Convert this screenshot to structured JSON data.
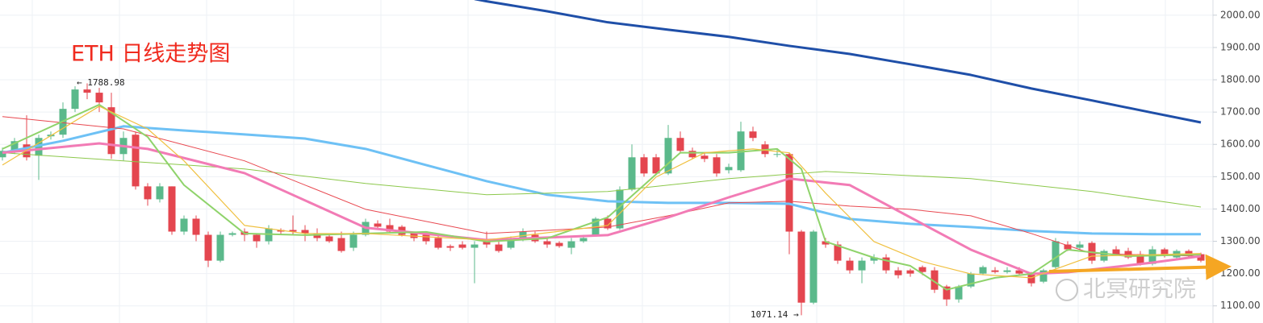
{
  "chart_data": {
    "type": "candlestick",
    "title": "ETH 日线走势图",
    "annotations": [
      "← 1788.98",
      "1071.14 →"
    ],
    "watermark": "北冥研究院",
    "ylim": [
      1047,
      2047
    ],
    "yticks": [
      {
        "value": 1100,
        "label": "1100.00"
      },
      {
        "value": 1200,
        "label": "1200.00"
      },
      {
        "value": 1300,
        "label": "1300.00"
      },
      {
        "value": 1400,
        "label": "1400.00"
      },
      {
        "value": 1500,
        "label": "1500.00"
      },
      {
        "value": 1600,
        "label": "1600.00"
      },
      {
        "value": 1700,
        "label": "1700.00"
      },
      {
        "value": 1800,
        "label": "1800.00"
      },
      {
        "value": 1900,
        "label": "1900.00"
      },
      {
        "value": 2000,
        "label": "2000.00"
      }
    ],
    "grid": true,
    "up_color": "#5bb98b",
    "down_color": "#e4464f",
    "open": [
      1560,
      1580,
      1600,
      1565,
      1625,
      1630,
      1710,
      1770,
      1760,
      1715,
      1570,
      1630,
      1470,
      1430,
      1470,
      1330,
      1370,
      1320,
      1240,
      1320,
      1330,
      1320,
      1300,
      1335,
      1335,
      1335,
      1325,
      1315,
      1310,
      1280,
      1320,
      1355,
      1350,
      1345,
      1325,
      1320,
      1310,
      1285,
      1290,
      1280,
      1300,
      1290,
      1280,
      1310,
      1320,
      1300,
      1295,
      1280,
      1300,
      1320,
      1370,
      1340,
      1460,
      1560,
      1560,
      1510,
      1620,
      1580,
      1565,
      1560,
      1520,
      1520,
      1640,
      1600,
      1570,
      1570,
      1330,
      1110,
      1300,
      1290,
      1240,
      1210,
      1240,
      1250,
      1210,
      1210,
      1220,
      1210,
      1160,
      1120,
      1160,
      1200,
      1210,
      1205,
      1210,
      1200,
      1175,
      1220,
      1290,
      1280,
      1295,
      1240,
      1275,
      1270,
      1260,
      1230,
      1275,
      1250,
      1270,
      1260
    ],
    "high": [
      1590,
      1620,
      1690,
      1630,
      1640,
      1730,
      1780,
      1788.98,
      1775,
      1760,
      1640,
      1640,
      1480,
      1480,
      1470,
      1380,
      1380,
      1330,
      1330,
      1330,
      1340,
      1325,
      1350,
      1340,
      1380,
      1350,
      1340,
      1320,
      1330,
      1330,
      1370,
      1365,
      1370,
      1350,
      1330,
      1330,
      1320,
      1290,
      1300,
      1300,
      1330,
      1300,
      1315,
      1340,
      1330,
      1310,
      1300,
      1310,
      1320,
      1375,
      1380,
      1470,
      1600,
      1570,
      1570,
      1660,
      1640,
      1590,
      1575,
      1570,
      1540,
      1670,
      1655,
      1610,
      1585,
      1575,
      1335,
      1335,
      1310,
      1300,
      1250,
      1250,
      1260,
      1260,
      1220,
      1215,
      1225,
      1220,
      1165,
      1165,
      1205,
      1225,
      1220,
      1220,
      1220,
      1205,
      1215,
      1310,
      1300,
      1300,
      1300,
      1275,
      1285,
      1280,
      1270,
      1285,
      1280,
      1275,
      1275,
      1265
    ],
    "low": [
      1550,
      1570,
      1550,
      1490,
      1615,
      1620,
      1700,
      1740,
      1700,
      1555,
      1550,
      1460,
      1410,
      1420,
      1320,
      1320,
      1300,
      1220,
      1235,
      1315,
      1300,
      1280,
      1290,
      1320,
      1320,
      1300,
      1300,
      1295,
      1265,
      1270,
      1315,
      1340,
      1325,
      1315,
      1300,
      1290,
      1275,
      1270,
      1275,
      1170,
      1280,
      1265,
      1275,
      1300,
      1295,
      1280,
      1280,
      1260,
      1295,
      1315,
      1335,
      1335,
      1455,
      1500,
      1505,
      1505,
      1575,
      1555,
      1545,
      1500,
      1510,
      1515,
      1610,
      1560,
      1560,
      1260,
      1071.14,
      1105,
      1280,
      1230,
      1200,
      1170,
      1230,
      1200,
      1185,
      1190,
      1195,
      1140,
      1100,
      1110,
      1155,
      1195,
      1200,
      1200,
      1195,
      1160,
      1170,
      1215,
      1270,
      1275,
      1230,
      1235,
      1255,
      1245,
      1225,
      1225,
      1250,
      1245,
      1250,
      1235
    ],
    "close": [
      1580,
      1610,
      1560,
      1620,
      1630,
      1710,
      1770,
      1760,
      1730,
      1570,
      1620,
      1470,
      1430,
      1470,
      1330,
      1370,
      1320,
      1240,
      1320,
      1325,
      1320,
      1300,
      1340,
      1330,
      1330,
      1325,
      1310,
      1300,
      1270,
      1320,
      1360,
      1345,
      1330,
      1320,
      1310,
      1300,
      1280,
      1280,
      1280,
      1290,
      1290,
      1270,
      1310,
      1330,
      1300,
      1290,
      1285,
      1300,
      1310,
      1370,
      1340,
      1460,
      1560,
      1510,
      1510,
      1620,
      1580,
      1560,
      1555,
      1510,
      1530,
      1640,
      1620,
      1570,
      1570,
      1330,
      1110,
      1330,
      1290,
      1240,
      1210,
      1240,
      1250,
      1210,
      1195,
      1200,
      1205,
      1150,
      1120,
      1160,
      1200,
      1220,
      1205,
      1210,
      1200,
      1170,
      1210,
      1300,
      1275,
      1290,
      1240,
      1270,
      1260,
      1250,
      1230,
      1275,
      1255,
      1270,
      1255,
      1240
    ],
    "series": [
      {
        "color": "#1f4fa8",
        "x": [
          39,
          40,
          45,
          50,
          55,
          60,
          65,
          70,
          75,
          80,
          85,
          90,
          95,
          99
        ],
        "values": [
          2050,
          2043,
          2012,
          1978,
          1955,
          1933,
          1905,
          1880,
          1848,
          1815,
          1773,
          1736,
          1698,
          1668
        ]
      },
      {
        "color": "#6ec1f5",
        "x": [
          0,
          5,
          10,
          15,
          20,
          25,
          30,
          35,
          40,
          45,
          50,
          55,
          60,
          65,
          70,
          75,
          80,
          85,
          90,
          95,
          99
        ],
        "values": [
          1574,
          1611,
          1656,
          1643,
          1631,
          1618,
          1586,
          1536,
          1486,
          1444,
          1424,
          1419,
          1419,
          1416,
          1369,
          1354,
          1344,
          1332,
          1324,
          1322,
          1322
        ]
      },
      {
        "color": "#8cc84b",
        "x": [
          0,
          10,
          20,
          30,
          40,
          50,
          60,
          68,
          80,
          90,
          99
        ],
        "values": [
          1574,
          1549,
          1524,
          1479,
          1444,
          1454,
          1494,
          1516,
          1494,
          1454,
          1406
        ]
      },
      {
        "color": "#e8474f",
        "x": [
          0,
          10,
          20,
          30,
          40,
          50,
          55,
          60,
          65,
          70,
          75,
          80,
          85,
          90,
          99
        ],
        "values": [
          1686,
          1648,
          1549,
          1399,
          1324,
          1344,
          1379,
          1419,
          1424,
          1409,
          1399,
          1379,
          1324,
          1262,
          1254
        ]
      },
      {
        "color": "#f27bb5",
        "x": [
          0,
          8,
          12,
          20,
          30,
          40,
          50,
          55,
          60,
          65,
          70,
          75,
          80,
          85,
          88,
          95,
          99
        ],
        "values": [
          1574,
          1603,
          1586,
          1511,
          1342,
          1304,
          1319,
          1374,
          1436,
          1494,
          1474,
          1374,
          1274,
          1199,
          1204,
          1234,
          1254
        ]
      },
      {
        "color": "#8fd36b",
        "x": [
          0,
          8,
          12,
          15,
          20,
          25,
          30,
          35,
          40,
          45,
          50,
          53,
          56,
          60,
          64,
          66,
          68,
          72,
          75,
          78,
          82,
          85,
          88,
          93,
          99
        ],
        "values": [
          1586,
          1723,
          1623,
          1474,
          1324,
          1319,
          1324,
          1329,
          1299,
          1309,
          1374,
          1474,
          1574,
          1574,
          1586,
          1524,
          1299,
          1249,
          1224,
          1150,
          1187,
          1199,
          1274,
          1254,
          1259
        ]
      },
      {
        "color": "#f0c040",
        "x": [
          0,
          8,
          12,
          15,
          20,
          25,
          30,
          40,
          50,
          54,
          58,
          62,
          65,
          68,
          72,
          76,
          80,
          85,
          90,
          99
        ],
        "values": [
          1536,
          1718,
          1648,
          1549,
          1349,
          1324,
          1324,
          1304,
          1349,
          1499,
          1574,
          1586,
          1574,
          1449,
          1299,
          1237,
          1199,
          1187,
          1254,
          1262
        ]
      }
    ]
  }
}
